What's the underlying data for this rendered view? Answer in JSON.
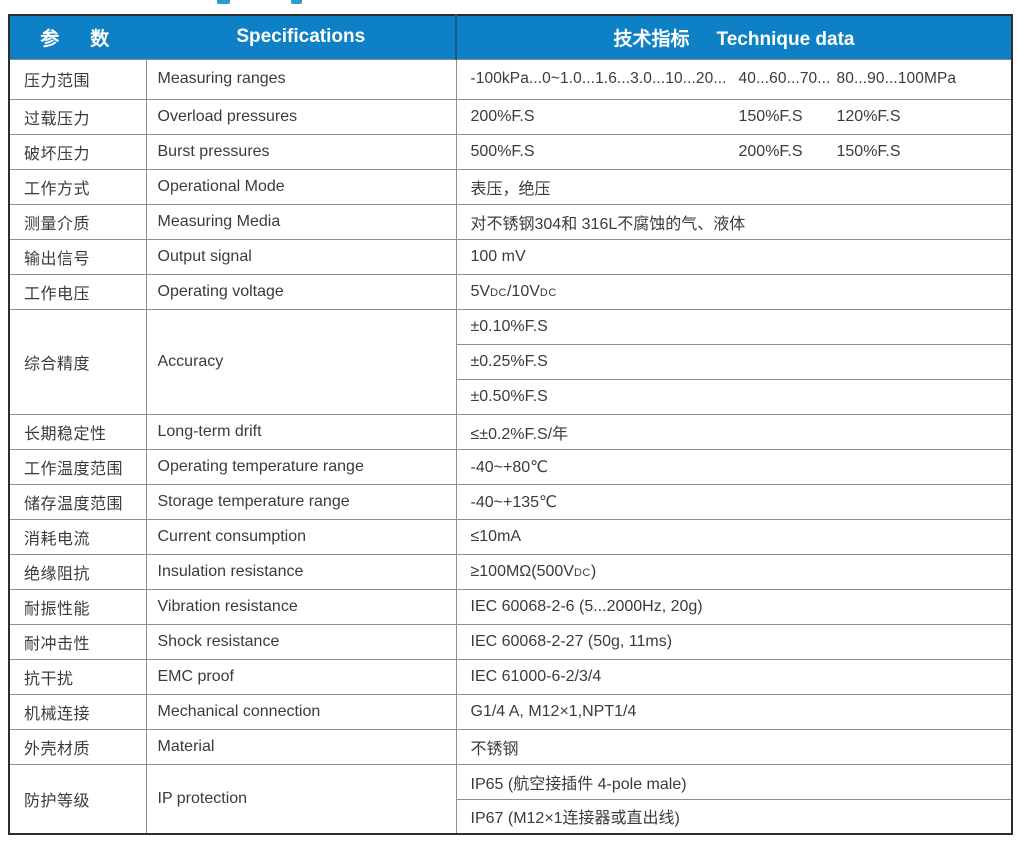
{
  "accent_color": "#0d80c6",
  "header": {
    "param_zh": "参　数",
    "specifications": "Specifications",
    "tech_zh": "技术指标",
    "tech_en": "Technique data"
  },
  "rows": [
    {
      "zh": "压力范围",
      "en": "Measuring ranges",
      "v1": "-100kPa...0~1.0...1.6...3.0...10...20...",
      "v2": "40...60...70...",
      "v3": "80...90...100MPa"
    },
    {
      "zh": "过载压力",
      "en": "Overload pressures",
      "v1": "200%F.S",
      "v2": "150%F.S",
      "v3": "120%F.S"
    },
    {
      "zh": "破坏压力",
      "en": "Burst pressures",
      "v1": "500%F.S",
      "v2": "200%F.S",
      "v3": "150%F.S"
    },
    {
      "zh": "工作方式",
      "en": "Operational Mode",
      "value": "表压，绝压"
    },
    {
      "zh": "测量介质",
      "en": "Measuring Media",
      "value": "对不锈钢304和 316L不腐蚀的气、液体"
    },
    {
      "zh": "输出信号",
      "en": "Output signal",
      "value": "100 mV"
    },
    {
      "zh": "工作电压",
      "en": "Operating voltage",
      "parts": [
        "5V",
        "DC",
        "/10V",
        "DC"
      ]
    },
    {
      "zh": "综合精度",
      "en": "Accuracy",
      "values": [
        "±0.10%F.S",
        "±0.25%F.S",
        "±0.50%F.S"
      ]
    },
    {
      "zh": "长期稳定性",
      "en": "Long-term drift",
      "value": "≤±0.2%F.S/年"
    },
    {
      "zh": "工作温度范围",
      "en": "Operating temperature range",
      "value": "-40~+80℃"
    },
    {
      "zh": "储存温度范围",
      "en": "Storage temperature range",
      "value": "-40~+135℃"
    },
    {
      "zh": "消耗电流",
      "en": "Current consumption",
      "value": "≤10mA"
    },
    {
      "zh": "绝缘阻抗",
      "en": "Insulation resistance",
      "parts": [
        "≥100MΩ(500V",
        "DC",
        ")"
      ]
    },
    {
      "zh": "耐振性能",
      "en": "Vibration resistance",
      "value": "IEC 60068-2-6 (5...2000Hz, 20g)"
    },
    {
      "zh": "耐冲击性",
      "en": "Shock resistance",
      "value": "IEC 60068-2-27 (50g, 11ms)"
    },
    {
      "zh": "抗干扰",
      "en": "EMC proof",
      "value": "IEC 61000-6-2/3/4"
    },
    {
      "zh": "机械连接",
      "en": "Mechanical connection",
      "value": "G1/4 A, M12×1,NPT1/4"
    },
    {
      "zh": "外壳材质",
      "en": "Material",
      "value": "不锈钢"
    },
    {
      "zh": "防护等级",
      "en": "IP protection",
      "values": [
        "IP65 (航空接插件 4-pole male)",
        "IP67 (M12×1连接器或直出线)"
      ]
    }
  ]
}
